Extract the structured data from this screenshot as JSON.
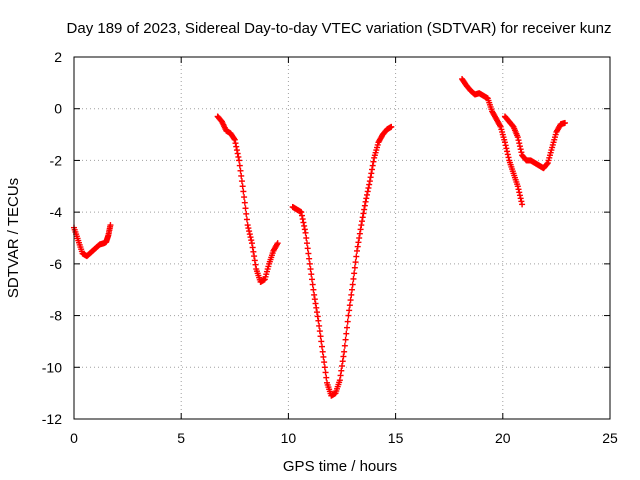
{
  "chart_data": {
    "type": "scatter",
    "title": "Day 189 of 2023, Sidereal Day-to-day VTEC variation (SDTVAR) for receiver kunz",
    "xlabel": "GPS time / hours",
    "ylabel": "SDTVAR / TECUs",
    "xlim": [
      0,
      25
    ],
    "ylim": [
      -12,
      2
    ],
    "xticks": [
      "0",
      "5",
      "10",
      "15",
      "20",
      "25"
    ],
    "yticks": [
      "2",
      "0",
      "-2",
      "-4",
      "-6",
      "-8",
      "-10",
      "-12"
    ],
    "grid": true,
    "legend": "none",
    "marker_color": "#ff0000",
    "series": [
      {
        "segments": [
          {
            "x": [
              0.0,
              0.2,
              0.4,
              0.6,
              0.8,
              1.0,
              1.2,
              1.4,
              1.5,
              1.6,
              1.7
            ],
            "y": [
              -4.6,
              -5.1,
              -5.6,
              -5.7,
              -5.55,
              -5.4,
              -5.25,
              -5.2,
              -5.15,
              -4.9,
              -4.5
            ]
          },
          {
            "x": [
              6.7,
              6.9,
              7.1,
              7.3,
              7.5,
              7.7,
              7.9,
              8.1,
              8.3,
              8.5,
              8.7,
              8.9,
              9.1,
              9.3,
              9.5
            ],
            "y": [
              -0.3,
              -0.5,
              -0.85,
              -0.95,
              -1.2,
              -2.0,
              -3.2,
              -4.5,
              -5.2,
              -6.2,
              -6.7,
              -6.6,
              -6.0,
              -5.5,
              -5.2
            ]
          },
          {
            "x": [
              10.2,
              10.4,
              10.6,
              10.8,
              11.0,
              11.2,
              11.4,
              11.6,
              11.8,
              12.0,
              12.2,
              12.4,
              12.6,
              12.8,
              13.0,
              13.2,
              13.4,
              13.6,
              13.8,
              14.0,
              14.2,
              14.4,
              14.6,
              14.8
            ],
            "y": [
              -3.8,
              -3.9,
              -4.0,
              -4.8,
              -6.0,
              -7.2,
              -8.2,
              -9.4,
              -10.6,
              -11.1,
              -11.0,
              -10.5,
              -9.4,
              -8.0,
              -6.8,
              -5.5,
              -4.5,
              -3.6,
              -2.8,
              -1.9,
              -1.3,
              -1.0,
              -0.8,
              -0.7
            ]
          },
          {
            "x": [
              18.1,
              18.3,
              18.5,
              18.7,
              18.9,
              19.1,
              19.3,
              19.5,
              19.7,
              19.9,
              20.1,
              20.3,
              20.5,
              20.7,
              20.9
            ],
            "y": [
              1.15,
              0.9,
              0.7,
              0.55,
              0.6,
              0.5,
              0.4,
              -0.1,
              -0.4,
              -0.7,
              -1.3,
              -2.0,
              -2.5,
              -3.0,
              -3.7
            ]
          },
          {
            "x": [
              20.1,
              20.3,
              20.5,
              20.7,
              20.9,
              21.1,
              21.3,
              21.5,
              21.7,
              21.9,
              22.1,
              22.3,
              22.5,
              22.7,
              22.9
            ],
            "y": [
              -0.3,
              -0.5,
              -0.7,
              -1.1,
              -1.8,
              -2.0,
              -2.0,
              -2.1,
              -2.2,
              -2.3,
              -2.1,
              -1.5,
              -0.9,
              -0.6,
              -0.55
            ]
          }
        ]
      }
    ]
  }
}
